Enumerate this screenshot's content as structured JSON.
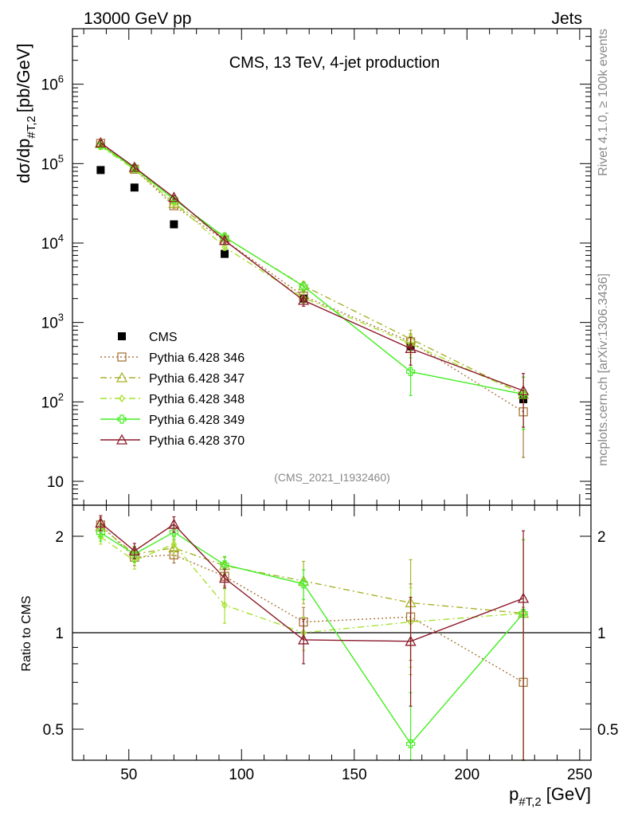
{
  "header": {
    "left": "13000 GeV pp",
    "right": "Jets"
  },
  "side_labels": {
    "rivet": "Rivet 4.1.0, ≥ 100k events",
    "mcplots": "mcplots.cern.ch [arXiv:1306.3436]"
  },
  "analysis_tag": "(CMS_2021_I1932460)",
  "chart_data": [
    {
      "type": "scatter",
      "panel": "main",
      "title": "CMS, 13 TeV, 4-jet production",
      "xlabel_main": "p",
      "xlabel_sub": "#T,2",
      "xlabel_unit": "[GeV]",
      "ylabel_main": "dσ/dp",
      "ylabel_sub": "#T,2",
      "ylabel_unit": "[pb/GeV]",
      "yscale": "log",
      "xlim": [
        25,
        255
      ],
      "ylim": [
        5,
        5000000
      ],
      "yticks": [
        {
          "value": 10,
          "base": "10",
          "exp": ""
        },
        {
          "value": 100,
          "base": "10",
          "exp": "2"
        },
        {
          "value": 1000,
          "base": "10",
          "exp": "3"
        },
        {
          "value": 10000,
          "base": "10",
          "exp": "4"
        },
        {
          "value": 100000,
          "base": "10",
          "exp": "5"
        },
        {
          "value": 1000000,
          "base": "10",
          "exp": "6"
        }
      ],
      "x": [
        37.5,
        52.5,
        70,
        92.5,
        127.5,
        175,
        225
      ],
      "series": [
        {
          "name": "CMS",
          "color": "#000000",
          "marker": "filled-square",
          "line": "none",
          "values": [
            83000,
            50000,
            17200,
            7300,
            2000,
            500,
            108
          ]
        },
        {
          "name": "Pythia 6.428 346",
          "color": "#a9773a",
          "marker": "open-square",
          "line": "dotted",
          "values": [
            180000,
            85000,
            29500,
            10800,
            2150,
            570,
            75
          ],
          "err_low": [
            12000,
            6000,
            2000,
            800,
            300,
            150,
            55
          ],
          "err_high": [
            12000,
            6000,
            2000,
            800,
            300,
            150,
            60
          ]
        },
        {
          "name": "Pythia 6.428 347",
          "color": "#a8b228",
          "marker": "open-triangle",
          "line": "dashdot",
          "values": [
            178000,
            88000,
            31500,
            11800,
            2900,
            620,
            125
          ],
          "err_low": [
            12000,
            6000,
            2000,
            800,
            350,
            180,
            80
          ],
          "err_high": [
            12000,
            6000,
            2000,
            800,
            350,
            180,
            80
          ]
        },
        {
          "name": "Pythia 6.428 348",
          "color": "#a6e22e",
          "marker": "open-diamond",
          "line": "dashdot",
          "values": [
            165000,
            84000,
            32500,
            8900,
            2050,
            540,
            125
          ],
          "err_low": [
            12000,
            6000,
            2000,
            800,
            300,
            150,
            80
          ],
          "err_high": [
            12000,
            6000,
            2000,
            800,
            300,
            150,
            80
          ]
        },
        {
          "name": "Pythia 6.428 349",
          "color": "#44ee22",
          "marker": "open-cross",
          "line": "solid",
          "values": [
            170000,
            88000,
            35500,
            11900,
            2850,
            240,
            125
          ],
          "err_low": [
            12000,
            6000,
            2000,
            800,
            350,
            120,
            80
          ],
          "err_high": [
            12000,
            6000,
            2000,
            800,
            350,
            120,
            80
          ]
        },
        {
          "name": "Pythia 6.428 370",
          "color": "#8b1a2a",
          "marker": "open-triangle",
          "line": "solid",
          "values": [
            183000,
            90000,
            37500,
            10800,
            1900,
            470,
            138
          ],
          "err_low": [
            12000,
            6000,
            2000,
            800,
            300,
            180,
            90
          ],
          "err_high": [
            12000,
            6000,
            2000,
            800,
            300,
            180,
            90
          ]
        }
      ]
    },
    {
      "type": "scatter",
      "panel": "ratio",
      "ylabel": "Ratio to CMS",
      "yscale": "log",
      "xlim": [
        25,
        255
      ],
      "ylim": [
        0.4,
        2.5
      ],
      "xticks": [
        50,
        100,
        150,
        200,
        250
      ],
      "yticks": [
        0.5,
        1,
        2
      ],
      "reference": 1,
      "x": [
        37.5,
        52.5,
        70,
        92.5,
        127.5,
        175,
        225
      ],
      "series": [
        {
          "name": "Pythia 6.428 346",
          "values": [
            2.17,
            1.72,
            1.75,
            1.5,
            1.08,
            1.12,
            0.7
          ],
          "err_low": [
            0.12,
            0.1,
            0.1,
            0.1,
            0.12,
            0.3,
            0.5
          ],
          "err_high": [
            0.12,
            0.1,
            0.1,
            0.1,
            0.12,
            0.3,
            0.5
          ]
        },
        {
          "name": "Pythia 6.428 347",
          "values": [
            2.14,
            1.76,
            1.84,
            1.62,
            1.45,
            1.24,
            1.15
          ],
          "err_low": [
            0.12,
            0.1,
            0.1,
            0.1,
            0.22,
            0.5,
            0.75
          ],
          "err_high": [
            0.12,
            0.1,
            0.1,
            0.1,
            0.22,
            0.45,
            0.8
          ]
        },
        {
          "name": "Pythia 6.428 348",
          "values": [
            1.99,
            1.68,
            1.89,
            1.22,
            1.0,
            1.08,
            1.15
          ],
          "err_low": [
            0.1,
            0.1,
            0.1,
            0.15,
            0.12,
            0.3,
            0.75
          ],
          "err_high": [
            0.1,
            0.1,
            0.1,
            0.15,
            0.12,
            0.3,
            0.8
          ]
        },
        {
          "name": "Pythia 6.428 349",
          "values": [
            2.05,
            1.76,
            2.06,
            1.63,
            1.42,
            0.45,
            1.15
          ],
          "err_low": [
            0.12,
            0.1,
            0.1,
            0.1,
            0.15,
            0.2,
            0.75
          ],
          "err_high": [
            0.12,
            0.1,
            0.1,
            0.1,
            0.15,
            0.2,
            0.8
          ]
        },
        {
          "name": "Pythia 6.428 370",
          "values": [
            2.2,
            1.8,
            2.18,
            1.48,
            0.95,
            0.94,
            1.28
          ],
          "err_low": [
            0.12,
            0.1,
            0.12,
            0.1,
            0.15,
            0.35,
            0.9
          ],
          "err_high": [
            0.12,
            0.1,
            0.12,
            0.1,
            0.15,
            0.35,
            0.8
          ]
        }
      ]
    }
  ]
}
